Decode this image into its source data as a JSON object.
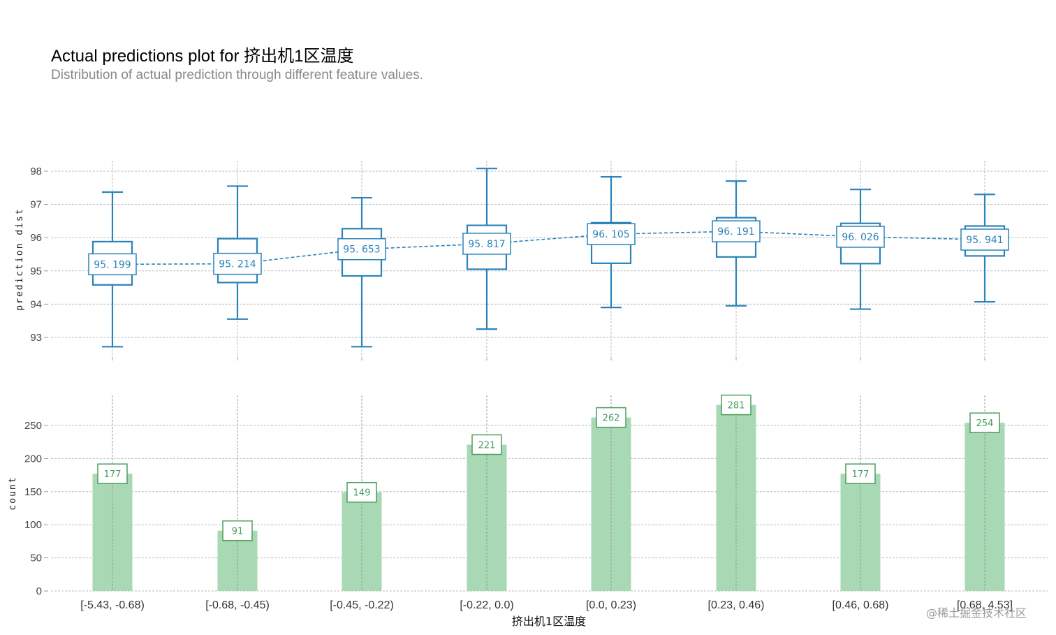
{
  "title": "Actual predictions plot for 挤出机1区温度",
  "subtitle": "Distribution of actual prediction through different feature values.",
  "watermark": "@稀土掘金技术社区",
  "colors": {
    "box": "#2b83ba",
    "bar": "#a9d8b4",
    "bar_label": "#4a9e5c",
    "grid": "#bbbbbb"
  },
  "chart_data": [
    {
      "type": "box",
      "ylabel": "prediction dist",
      "ylim": [
        92.4,
        98.3
      ],
      "yticks": [
        93,
        94,
        95,
        96,
        97,
        98
      ],
      "categories": [
        "[-5.43, -0.68)",
        "[-0.68, -0.45)",
        "[-0.45, -0.22)",
        "[-0.22, 0.0)",
        "[0.0, 0.23)",
        "[0.23, 0.46)",
        "[0.46, 0.68)",
        "[0.68, 4.53]"
      ],
      "boxes": [
        {
          "min": 92.72,
          "q1": 94.58,
          "median": 95.199,
          "q3": 95.88,
          "max": 97.37,
          "label": "95. 199"
        },
        {
          "min": 93.55,
          "q1": 94.65,
          "median": 95.214,
          "q3": 95.97,
          "max": 97.55,
          "label": "95. 214"
        },
        {
          "min": 92.72,
          "q1": 94.85,
          "median": 95.653,
          "q3": 96.27,
          "max": 97.2,
          "label": "95. 653"
        },
        {
          "min": 93.25,
          "q1": 95.05,
          "median": 95.817,
          "q3": 96.37,
          "max": 98.08,
          "label": "95. 817"
        },
        {
          "min": 93.9,
          "q1": 95.23,
          "median": 96.105,
          "q3": 96.45,
          "max": 97.83,
          "label": "96. 105"
        },
        {
          "min": 93.95,
          "q1": 95.42,
          "median": 96.191,
          "q3": 96.6,
          "max": 97.7,
          "label": "96. 191"
        },
        {
          "min": 93.85,
          "q1": 95.22,
          "median": 96.026,
          "q3": 96.43,
          "max": 97.45,
          "label": "96. 026"
        },
        {
          "min": 94.07,
          "q1": 95.45,
          "median": 95.941,
          "q3": 96.35,
          "max": 97.3,
          "label": "95. 941"
        }
      ]
    },
    {
      "type": "bar",
      "ylabel": "count",
      "ylim": [
        0,
        290
      ],
      "yticks": [
        0,
        50,
        100,
        150,
        200,
        250
      ],
      "xlabel": "挤出机1区温度",
      "categories": [
        "[-5.43, -0.68)",
        "[-0.68, -0.45)",
        "[-0.45, -0.22)",
        "[-0.22, 0.0)",
        "[0.0, 0.23)",
        "[0.23, 0.46)",
        "[0.46, 0.68)",
        "[0.68, 4.53]"
      ],
      "values": [
        177,
        91,
        149,
        221,
        262,
        281,
        177,
        254
      ]
    }
  ]
}
